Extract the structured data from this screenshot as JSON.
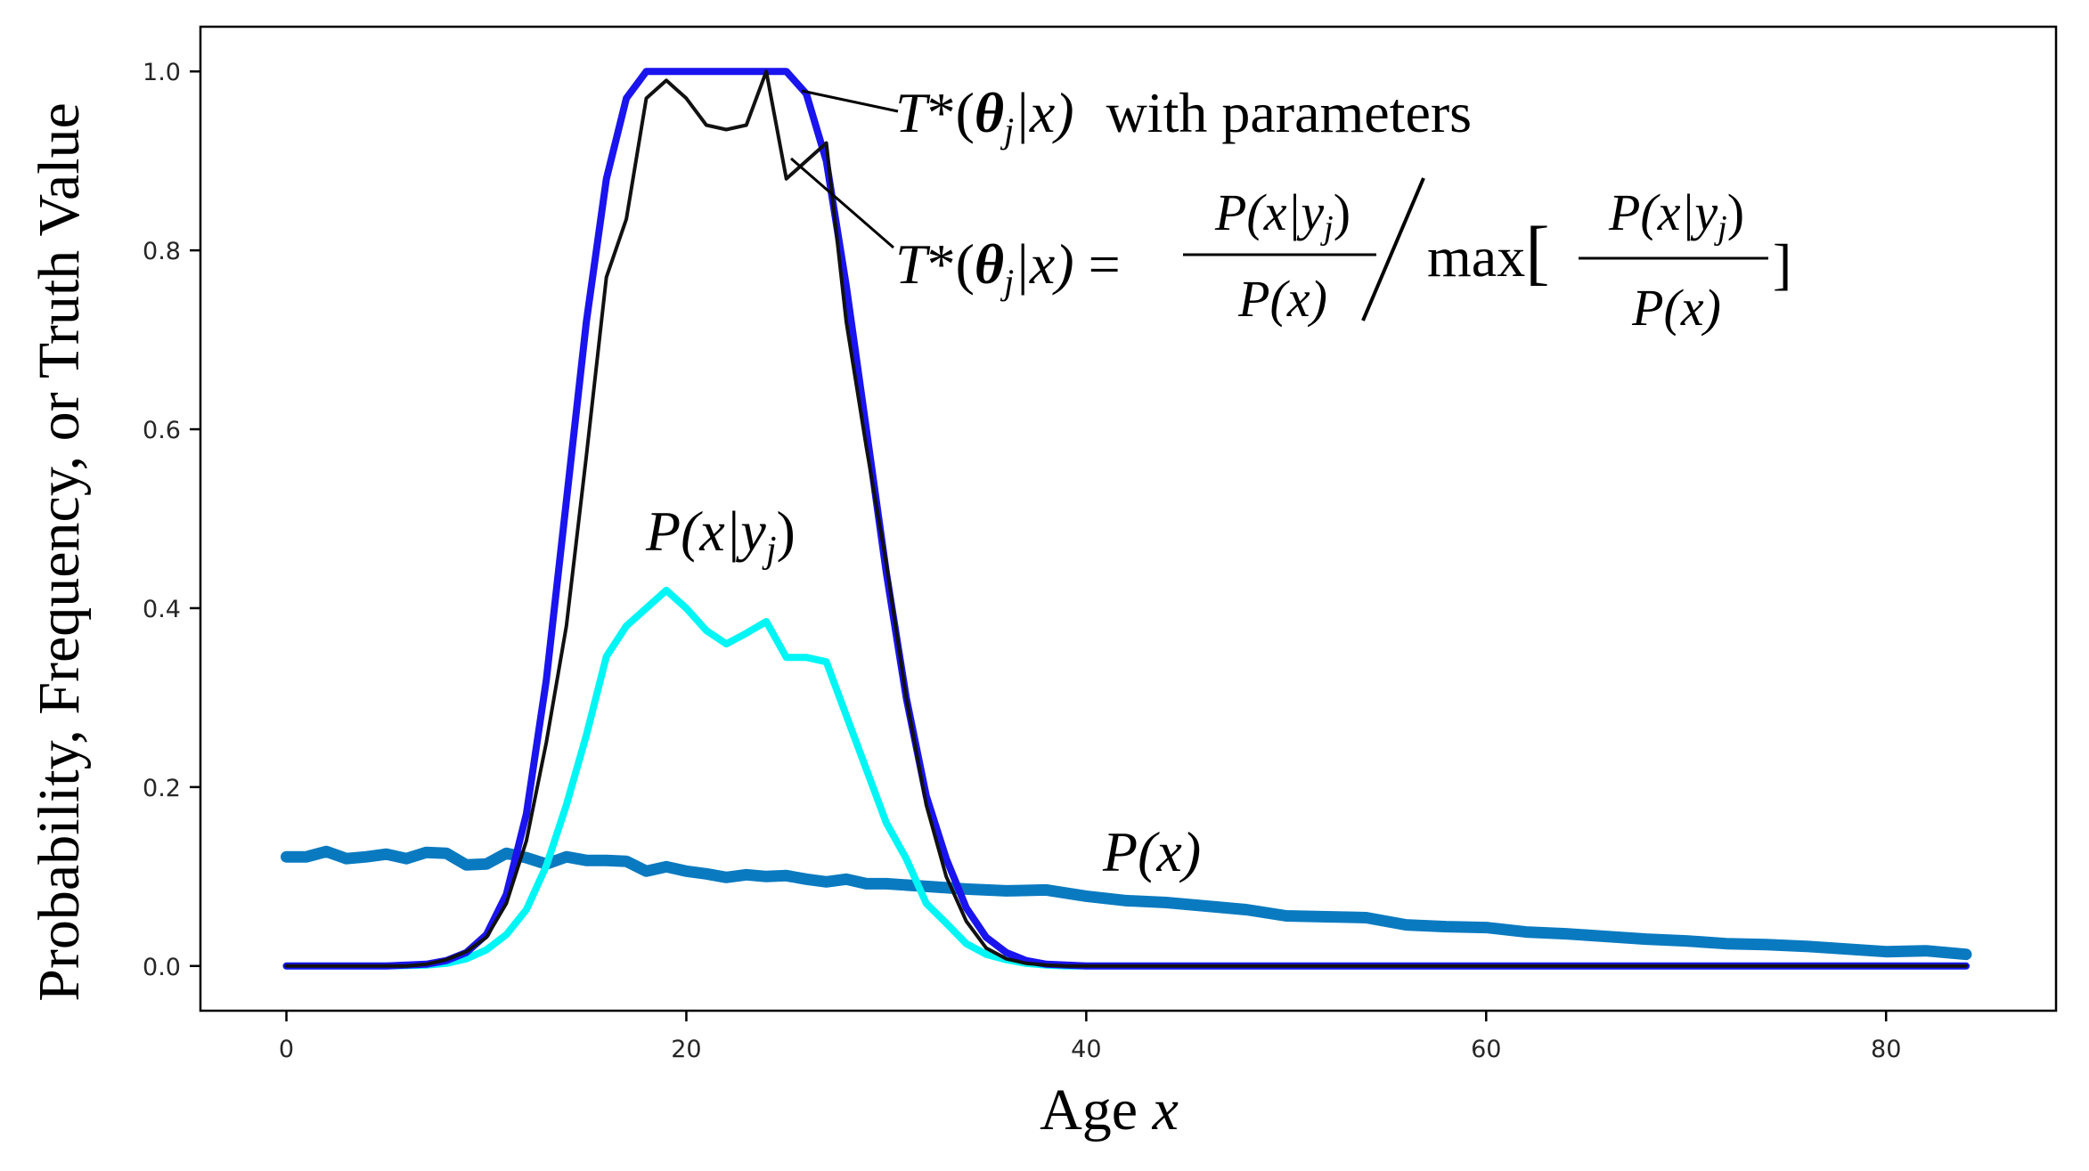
{
  "chart_data": {
    "type": "line",
    "title": "",
    "xlabel": "Age x",
    "ylabel": "Probability, Frequency, or Truth Value",
    "xlim": [
      -4.3,
      88.5
    ],
    "ylim": [
      -0.05,
      1.05
    ],
    "x_ticks": [
      0,
      20,
      40,
      60,
      80
    ],
    "y_ticks": [
      0.0,
      0.2,
      0.4,
      0.6,
      0.8,
      1.0
    ],
    "x_tick_labels": [
      "0",
      "20",
      "40",
      "60",
      "80"
    ],
    "y_tick_labels": [
      "0.0",
      "0.2",
      "0.4",
      "0.6",
      "0.8",
      "1.0"
    ],
    "grid": false,
    "series": [
      {
        "name": "P(x)",
        "color": "#0a7ac0",
        "width": 13,
        "x": [
          0,
          1,
          2,
          3,
          4,
          5,
          6,
          7,
          8,
          9,
          10,
          11,
          12,
          13,
          14,
          15,
          16,
          17,
          18,
          19,
          20,
          21,
          22,
          23,
          24,
          25,
          26,
          27,
          28,
          29,
          30,
          32,
          34,
          36,
          38,
          40,
          42,
          44,
          46,
          48,
          50,
          52,
          54,
          56,
          58,
          60,
          62,
          64,
          66,
          68,
          70,
          72,
          74,
          76,
          78,
          80,
          82,
          84
        ],
        "values": [
          0.122,
          0.122,
          0.128,
          0.12,
          0.122,
          0.125,
          0.12,
          0.127,
          0.126,
          0.113,
          0.114,
          0.126,
          0.121,
          0.114,
          0.122,
          0.118,
          0.118,
          0.117,
          0.106,
          0.111,
          0.106,
          0.103,
          0.099,
          0.102,
          0.1,
          0.101,
          0.097,
          0.094,
          0.097,
          0.092,
          0.092,
          0.089,
          0.086,
          0.084,
          0.085,
          0.078,
          0.073,
          0.071,
          0.067,
          0.063,
          0.056,
          0.055,
          0.054,
          0.046,
          0.044,
          0.043,
          0.038,
          0.036,
          0.033,
          0.03,
          0.028,
          0.025,
          0.024,
          0.022,
          0.019,
          0.016,
          0.017,
          0.013
        ]
      },
      {
        "name": "P(x|yj)",
        "color": "#00f5f5",
        "width": 8,
        "x": [
          0,
          5,
          7,
          8,
          9,
          10,
          11,
          12,
          13,
          14,
          15,
          16,
          17,
          18,
          19,
          20,
          21,
          22,
          23,
          24,
          25,
          26,
          27,
          28,
          29,
          30,
          31,
          32,
          33,
          34,
          35,
          36,
          37,
          38,
          39,
          40,
          84
        ],
        "values": [
          0,
          0,
          0.001,
          0.003,
          0.008,
          0.018,
          0.035,
          0.063,
          0.112,
          0.18,
          0.258,
          0.346,
          0.38,
          0.4,
          0.42,
          0.4,
          0.375,
          0.36,
          0.372,
          0.385,
          0.345,
          0.345,
          0.34,
          0.28,
          0.22,
          0.16,
          0.12,
          0.07,
          0.048,
          0.025,
          0.013,
          0.007,
          0.003,
          0.001,
          0,
          0,
          0
        ]
      },
      {
        "name": "T*(θj|x) with parameters",
        "color": "#1a14ee",
        "width": 8,
        "x": [
          0,
          5,
          6,
          7,
          8,
          9,
          10,
          11,
          12,
          13,
          14,
          15,
          16,
          17,
          18,
          19,
          20,
          21,
          22,
          23,
          24,
          25,
          26,
          27,
          28,
          29,
          30,
          31,
          32,
          33,
          34,
          35,
          36,
          37,
          38,
          39,
          40,
          84
        ],
        "values": [
          0,
          0,
          0.001,
          0.002,
          0.006,
          0.015,
          0.035,
          0.08,
          0.17,
          0.32,
          0.52,
          0.72,
          0.88,
          0.97,
          1.0,
          1.0,
          1.0,
          1.0,
          1.0,
          1.0,
          1.0,
          1.0,
          0.975,
          0.9,
          0.76,
          0.6,
          0.44,
          0.3,
          0.19,
          0.12,
          0.065,
          0.032,
          0.015,
          0.006,
          0.002,
          0.001,
          0,
          0
        ]
      },
      {
        "name": "T*(θj|x) = P(x|yj)/P(x) / max[P(x|yj)/P(x)]",
        "color": "#111111",
        "width": 4,
        "x": [
          0,
          5,
          6,
          7,
          8,
          9,
          10,
          11,
          12,
          13,
          14,
          15,
          16,
          17,
          18,
          19,
          20,
          21,
          22,
          23,
          24,
          25,
          26,
          27,
          28,
          29,
          30,
          31,
          32,
          33,
          34,
          35,
          36,
          37,
          38,
          39,
          40,
          84
        ],
        "values": [
          0,
          0,
          0,
          0.002,
          0.007,
          0.016,
          0.032,
          0.07,
          0.14,
          0.25,
          0.38,
          0.57,
          0.77,
          0.835,
          0.97,
          0.99,
          0.97,
          0.94,
          0.935,
          0.94,
          1.0,
          0.88,
          0.9,
          0.92,
          0.72,
          0.58,
          0.45,
          0.3,
          0.18,
          0.1,
          0.05,
          0.02,
          0.008,
          0.003,
          0.001,
          0,
          0,
          0
        ]
      }
    ],
    "annotations": {
      "T_param_label": "T*(θj|x)  with parameters",
      "T_formula_label": "T*(θj|x) = P(x|yj)/P(x) / max[P(x|yj)/P(x)]",
      "Pxy_label": "P(x|yj)",
      "Px_label": "P(x)"
    }
  },
  "labels": {
    "xlabel_main": "Age ",
    "xlabel_var": "x",
    "ylabel": "Probability, Frequency, or Truth Value",
    "T": "T",
    "star_open": "*(",
    "theta": "θ",
    "sub_j": "j",
    "bar_x_close": "|x)",
    "with_parameters": "with parameters",
    "equals": " = ",
    "P": "P",
    "x_bar_open": "(x|",
    "y": "y",
    "close_paren": ")",
    "x_paren": "(x)",
    "max": "max",
    "lbracket": "[",
    "rbracket": "]",
    "slash": "/"
  }
}
